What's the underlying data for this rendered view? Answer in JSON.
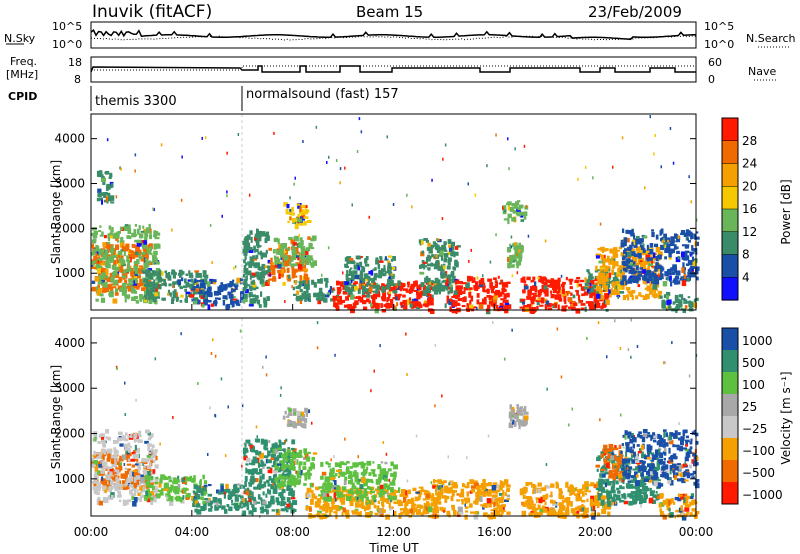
{
  "header": {
    "station": "Inuvik (fitACF)",
    "beam": "Beam 15",
    "date": "23/Feb/2009"
  },
  "noise_panel": {
    "left_label": "N.Sky",
    "right_label": "N.Search",
    "left_ticks": [
      "10^5",
      "10^0"
    ],
    "right_ticks": [
      "10^5",
      "10^0"
    ]
  },
  "freq_panel": {
    "left_label": "Freq.",
    "left_unit": "[MHz]",
    "right_label": "Nave",
    "left_ticks": [
      "18",
      "8"
    ],
    "right_ticks": [
      "60",
      "0"
    ]
  },
  "cpid_panel": {
    "label": "CPID",
    "programs": [
      {
        "name": "themis 3300",
        "start_hour": 0,
        "end_hour": 6
      },
      {
        "name": "normalsound (fast) 157",
        "start_hour": 6,
        "end_hour": 24
      }
    ]
  },
  "colors": {
    "power_scale": [
      "#1010ff",
      "#1a4fa8",
      "#3a8c68",
      "#68b55a",
      "#f5c800",
      "#f5a000",
      "#f06a00",
      "#ff1a00"
    ],
    "velocity_scale": [
      "#ff1a00",
      "#f06a00",
      "#f5a000",
      "#c8c8c8",
      "#a8a8a8",
      "#5ec040",
      "#2f8f6f",
      "#1a4fa8"
    ]
  },
  "chart_data": [
    {
      "type": "heatmap",
      "name": "power",
      "ylabel": "Slant Range [km]",
      "yticks": [
        1000,
        2000,
        3000,
        4000
      ],
      "ylim": [
        180,
        4550
      ],
      "xlim": [
        0,
        24
      ],
      "colorbar": {
        "label": "Power [dB]",
        "ticks": [
          "28",
          "24",
          "20",
          "16",
          "12",
          "8",
          "4"
        ],
        "range": [
          0,
          32
        ]
      },
      "regions": [
        {
          "t0": 0.0,
          "t1": 2.3,
          "r0": 650,
          "r1": 1700,
          "value": 27
        },
        {
          "t0": 0.0,
          "t1": 2.6,
          "r0": 400,
          "r1": 2100,
          "value": 14
        },
        {
          "t0": 0.2,
          "t1": 0.8,
          "r0": 2600,
          "r1": 3300,
          "value": 9
        },
        {
          "t0": 2.0,
          "t1": 4.5,
          "r0": 400,
          "r1": 1100,
          "value": 11
        },
        {
          "t0": 4.0,
          "t1": 6.0,
          "r0": 300,
          "r1": 900,
          "value": 6
        },
        {
          "t0": 6.0,
          "t1": 7.0,
          "r0": 300,
          "r1": 2000,
          "value": 8
        },
        {
          "t0": 7.0,
          "t1": 8.5,
          "r0": 800,
          "r1": 1600,
          "value": 24
        },
        {
          "t0": 7.2,
          "t1": 8.8,
          "r0": 1200,
          "r1": 1850,
          "value": 13
        },
        {
          "t0": 7.6,
          "t1": 8.6,
          "r0": 2100,
          "r1": 2600,
          "value": 18
        },
        {
          "t0": 8.0,
          "t1": 9.5,
          "r0": 400,
          "r1": 900,
          "value": 8
        },
        {
          "t0": 9.5,
          "t1": 13.5,
          "r0": 200,
          "r1": 850,
          "value": 28
        },
        {
          "t0": 10.0,
          "t1": 12.0,
          "r0": 600,
          "r1": 1400,
          "value": 9
        },
        {
          "t0": 14.0,
          "t1": 16.5,
          "r0": 200,
          "r1": 950,
          "value": 29
        },
        {
          "t0": 13.0,
          "t1": 14.5,
          "r0": 600,
          "r1": 1800,
          "value": 8
        },
        {
          "t0": 16.3,
          "t1": 17.2,
          "r0": 2200,
          "r1": 2650,
          "value": 12
        },
        {
          "t0": 16.5,
          "t1": 17.0,
          "r0": 1200,
          "r1": 1700,
          "value": 14
        },
        {
          "t0": 17.0,
          "t1": 20.5,
          "r0": 200,
          "r1": 950,
          "value": 29
        },
        {
          "t0": 19.5,
          "t1": 21.0,
          "r0": 600,
          "r1": 1100,
          "value": 10
        },
        {
          "t0": 20.0,
          "t1": 22.5,
          "r0": 500,
          "r1": 1600,
          "value": 21
        },
        {
          "t0": 21.0,
          "t1": 24.0,
          "r0": 800,
          "r1": 2000,
          "value": 7
        },
        {
          "t0": 22.5,
          "t1": 24.0,
          "r0": 200,
          "r1": 600,
          "value": 11
        }
      ]
    },
    {
      "type": "heatmap",
      "name": "velocity",
      "xlabel": "Time UT",
      "ylabel": "Slant Range [km]",
      "xticks": [
        "00:00",
        "04:00",
        "08:00",
        "12:00",
        "16:00",
        "20:00",
        "00:00"
      ],
      "yticks": [
        1000,
        2000,
        3000,
        4000
      ],
      "ylim": [
        180,
        4550
      ],
      "xlim": [
        0,
        24
      ],
      "colorbar": {
        "label": "Velocity [m s⁻¹]",
        "ticks": [
          "1000",
          "500",
          "100",
          "25",
          "−25",
          "−100",
          "−500",
          "−1000"
        ]
      },
      "regions": [
        {
          "t0": 0.0,
          "t1": 2.4,
          "r0": 850,
          "r1": 1650,
          "value": 1
        },
        {
          "t0": 0.0,
          "t1": 2.6,
          "r0": 500,
          "r1": 2100,
          "value": 3
        },
        {
          "t0": 2.0,
          "t1": 4.5,
          "r0": 500,
          "r1": 1100,
          "value": 5
        },
        {
          "t0": 4.0,
          "t1": 6.0,
          "r0": 300,
          "r1": 900,
          "value": 6
        },
        {
          "t0": 6.0,
          "t1": 8.0,
          "r0": 300,
          "r1": 1900,
          "value": 6
        },
        {
          "t0": 7.2,
          "t1": 8.8,
          "r0": 900,
          "r1": 1700,
          "value": 5
        },
        {
          "t0": 7.6,
          "t1": 8.6,
          "r0": 2200,
          "r1": 2600,
          "value": 4
        },
        {
          "t0": 8.5,
          "t1": 13.5,
          "r0": 200,
          "r1": 850,
          "value": 2
        },
        {
          "t0": 9.0,
          "t1": 12.0,
          "r0": 600,
          "r1": 1400,
          "value": 5
        },
        {
          "t0": 13.5,
          "t1": 16.5,
          "r0": 200,
          "r1": 1000,
          "value": 2
        },
        {
          "t0": 16.5,
          "t1": 17.2,
          "r0": 2200,
          "r1": 2650,
          "value": 4
        },
        {
          "t0": 17.0,
          "t1": 20.5,
          "r0": 200,
          "r1": 950,
          "value": 2
        },
        {
          "t0": 20.0,
          "t1": 22.5,
          "r0": 500,
          "r1": 1700,
          "value": 6
        },
        {
          "t0": 20.2,
          "t1": 21.0,
          "r0": 1000,
          "r1": 1800,
          "value": 1
        },
        {
          "t0": 22.5,
          "t1": 24.0,
          "r0": 200,
          "r1": 700,
          "value": 2
        },
        {
          "t0": 21.0,
          "t1": 24.0,
          "r0": 900,
          "r1": 2100,
          "value": 7
        }
      ]
    }
  ]
}
